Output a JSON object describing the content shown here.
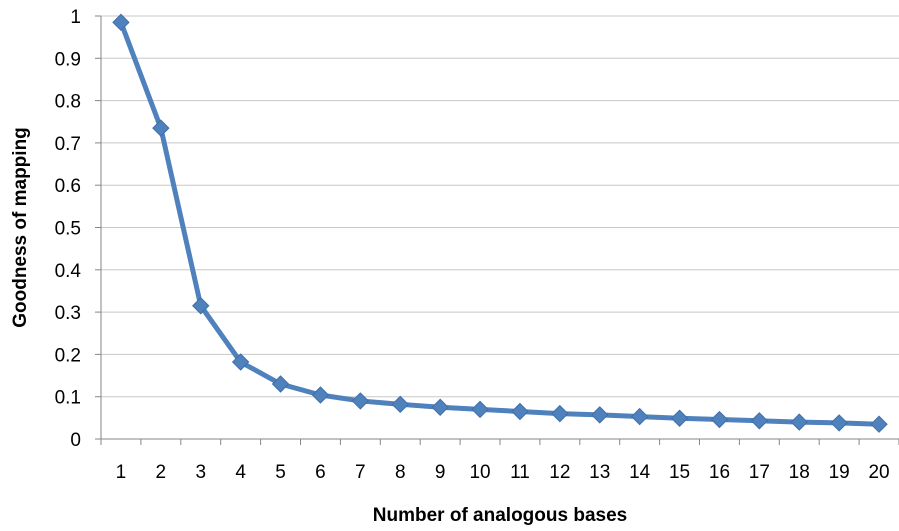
{
  "chart_data": {
    "type": "line",
    "title": "",
    "xlabel": "Number of analogous bases",
    "ylabel": "Goodness of mapping",
    "x": [
      1,
      2,
      3,
      4,
      5,
      6,
      7,
      8,
      9,
      10,
      11,
      12,
      13,
      14,
      15,
      16,
      17,
      18,
      19,
      20
    ],
    "series": [
      {
        "values": [
          0.985,
          0.735,
          0.315,
          0.182,
          0.13,
          0.104,
          0.09,
          0.082,
          0.075,
          0.07,
          0.065,
          0.06,
          0.057,
          0.053,
          0.049,
          0.046,
          0.043,
          0.04,
          0.038,
          0.035
        ],
        "color": "#4F81BD",
        "marker": "diamond"
      }
    ],
    "ylim": [
      0,
      1
    ],
    "yticks": [
      "0",
      "0.1",
      "0.2",
      "0.3",
      "0.4",
      "0.5",
      "0.6",
      "0.7",
      "0.8",
      "0.9",
      "1"
    ],
    "xticks": [
      "1",
      "2",
      "3",
      "4",
      "5",
      "6",
      "7",
      "8",
      "9",
      "10",
      "11",
      "12",
      "13",
      "14",
      "15",
      "16",
      "17",
      "18",
      "19",
      "20"
    ],
    "grid": true,
    "legend": "none"
  }
}
